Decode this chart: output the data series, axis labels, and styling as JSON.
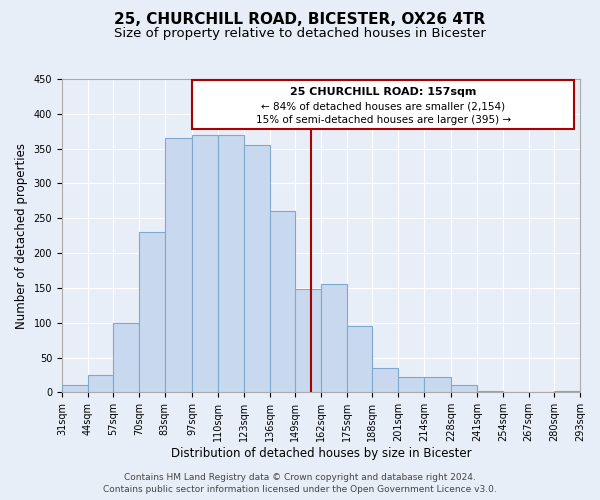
{
  "title": "25, CHURCHILL ROAD, BICESTER, OX26 4TR",
  "subtitle": "Size of property relative to detached houses in Bicester",
  "xlabel": "Distribution of detached houses by size in Bicester",
  "ylabel": "Number of detached properties",
  "footer_line1": "Contains HM Land Registry data © Crown copyright and database right 2024.",
  "footer_line2": "Contains public sector information licensed under the Open Government Licence v3.0.",
  "bar_edges": [
    31,
    44,
    57,
    70,
    83,
    97,
    110,
    123,
    136,
    149,
    162,
    175,
    188,
    201,
    214,
    228,
    241,
    254,
    267,
    280,
    293
  ],
  "bar_heights": [
    10,
    25,
    100,
    230,
    365,
    370,
    370,
    355,
    260,
    148,
    155,
    95,
    35,
    22,
    22,
    11,
    2,
    0,
    0,
    2
  ],
  "tick_labels": [
    "31sqm",
    "44sqm",
    "57sqm",
    "70sqm",
    "83sqm",
    "97sqm",
    "110sqm",
    "123sqm",
    "136sqm",
    "149sqm",
    "162sqm",
    "175sqm",
    "188sqm",
    "201sqm",
    "214sqm",
    "228sqm",
    "241sqm",
    "254sqm",
    "267sqm",
    "280sqm",
    "293sqm"
  ],
  "bar_color": "#c8d9ef",
  "bar_edge_color": "#7fa8cc",
  "vline_x": 157,
  "vline_color": "#aa0000",
  "annotation_title": "25 CHURCHILL ROAD: 157sqm",
  "annotation_line1": "← 84% of detached houses are smaller (2,154)",
  "annotation_line2": "15% of semi-detached houses are larger (395) →",
  "annotation_box_color": "#ffffff",
  "annotation_box_edge": "#aa0000",
  "ylim": [
    0,
    450
  ],
  "yticks": [
    0,
    50,
    100,
    150,
    200,
    250,
    300,
    350,
    400,
    450
  ],
  "background_color": "#e8eef8",
  "grid_color": "#ffffff",
  "title_fontsize": 11,
  "subtitle_fontsize": 9.5,
  "axis_label_fontsize": 8.5,
  "tick_fontsize": 7,
  "footer_fontsize": 6.5,
  "ann_fontsize_title": 8,
  "ann_fontsize_lines": 7.5
}
